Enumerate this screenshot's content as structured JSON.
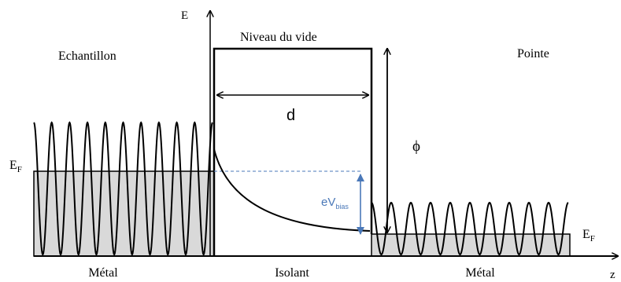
{
  "axis": {
    "vertical_label": "E",
    "horizontal_label": "z"
  },
  "regions": {
    "sample": {
      "title": "Echantillon",
      "material": "Métal"
    },
    "barrier": {
      "title": "Niveau du vide",
      "material": "Isolant"
    },
    "tip": {
      "title": "Pointe",
      "material": "Métal"
    }
  },
  "labels": {
    "distance": "d",
    "work_function": "ϕ",
    "fermi_main": "E",
    "fermi_sub": "F",
    "bias_main": "eV",
    "bias_sub": "bias"
  },
  "colors": {
    "line": "#000000",
    "metal_fill": "#d9d9d9",
    "bias_accent": "#4a78b8"
  }
}
